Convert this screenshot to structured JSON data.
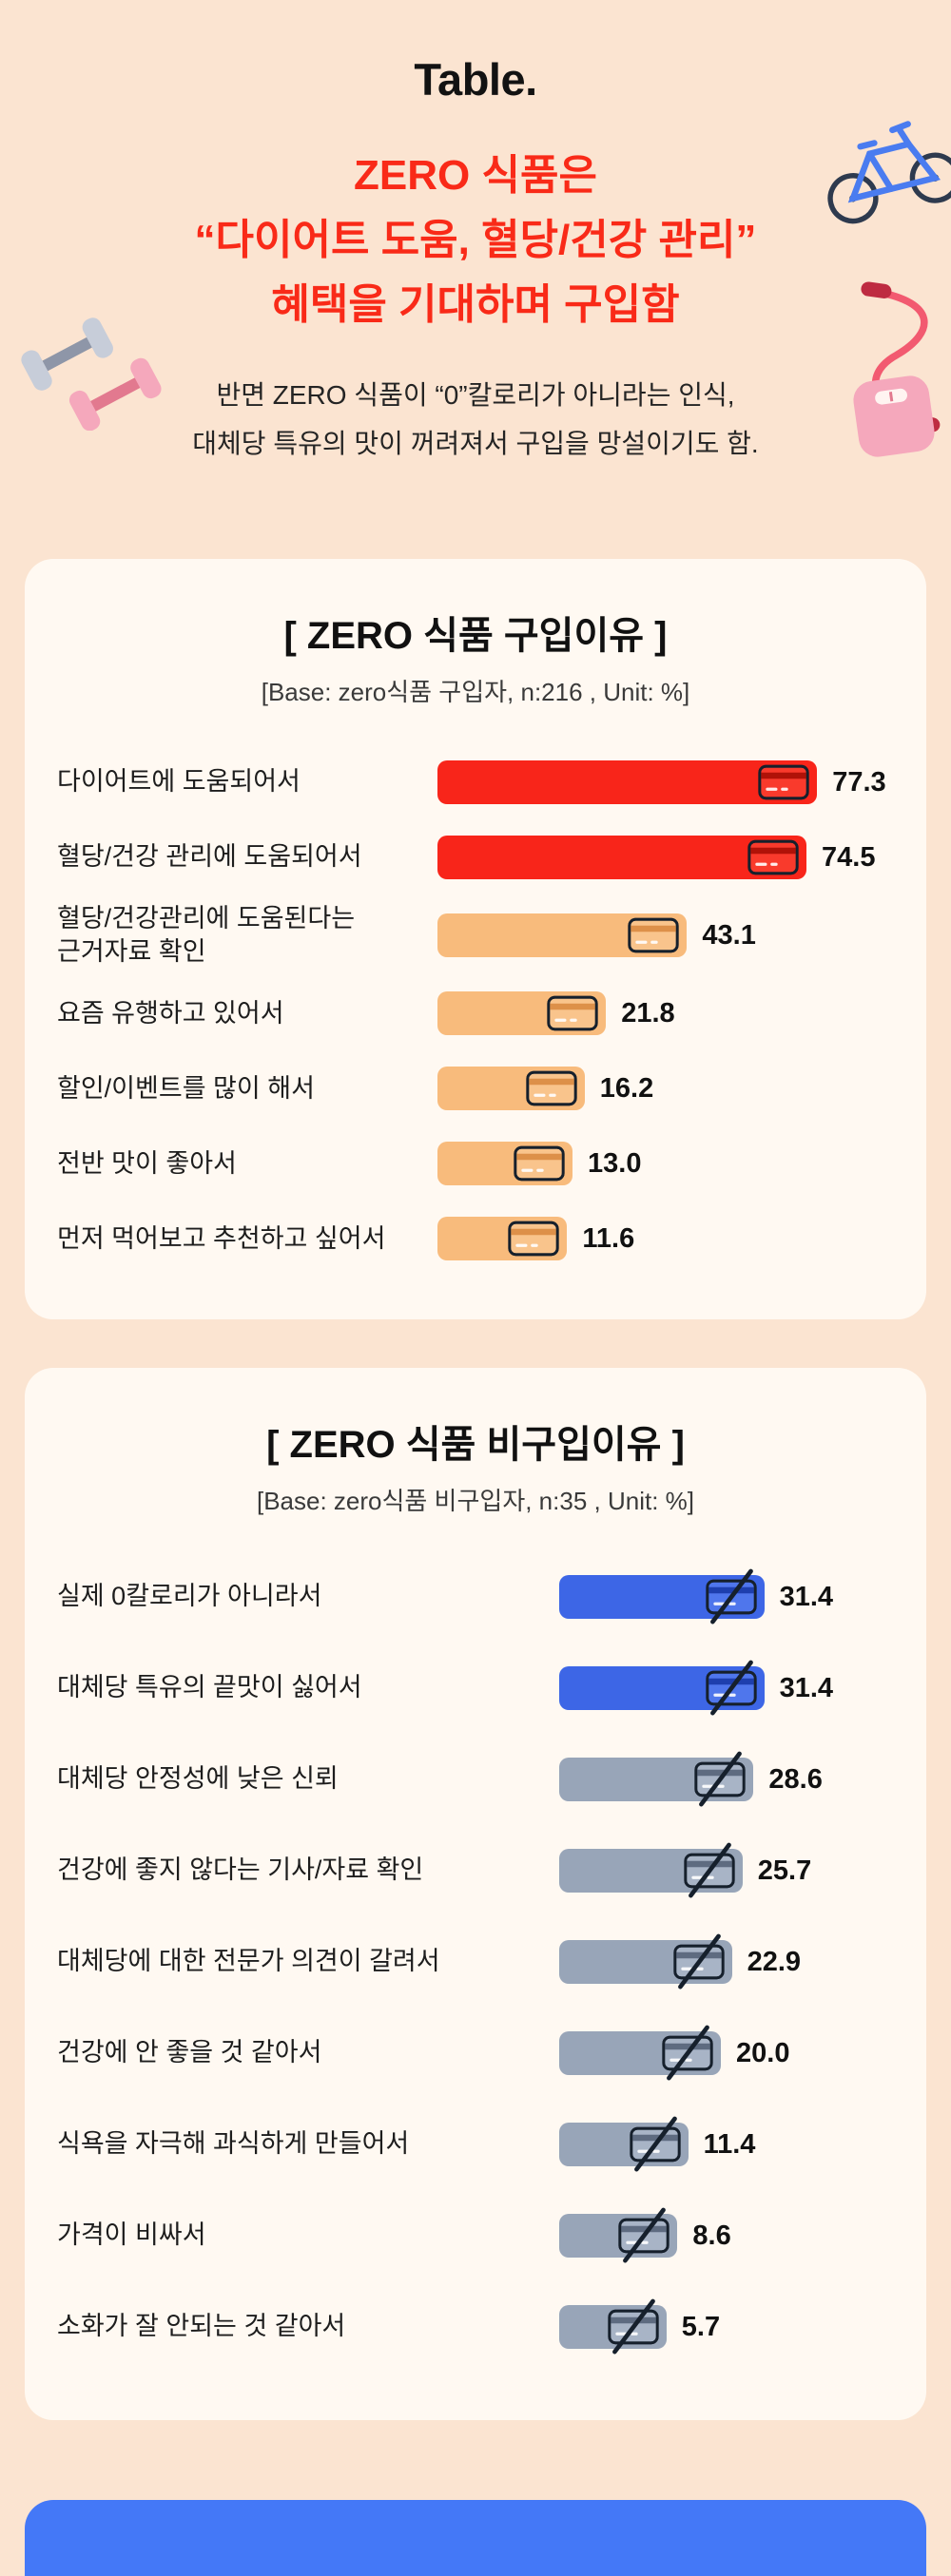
{
  "page": {
    "logo": "Table.",
    "title_lines": [
      "ZERO 식품은",
      "“다이어트 도움, 혈당/건강 관리”",
      "혜택을 기대하며 구입함"
    ],
    "subtitle_lines": [
      "반면 ZERO 식품이 “0”칼로리가 아니라는 인식,",
      "대체당 특유의 맛이 꺼려져서 구입을 망설이기도 함."
    ]
  },
  "colors": {
    "background": "#FBE4D1",
    "card_background": "#FFF9F2",
    "title_red": "#F92A18",
    "bar_red": "#F8251A",
    "bar_red_icon": "#F93A2C",
    "bar_red_dark": "#B01208",
    "bar_orange": "#F8BB7C",
    "bar_orange_icon": "#F9C48C",
    "bar_orange_dark": "#DD9049",
    "bar_blue": "#3D66E6",
    "bar_blue_icon": "#4F76EC",
    "bar_blue_dark": "#1E3FAE",
    "bar_gray": "#98A5B8",
    "bar_gray_icon": "#A8B4C6",
    "bar_gray_dark": "#5E6B80",
    "next_section_blue": "#4478F7",
    "text_dark": "#1d1d1d"
  },
  "decorations": [
    "bicycle",
    "jump-rope",
    "dumbbells",
    "weight-scale"
  ],
  "chart_data": [
    {
      "type": "bar",
      "orientation": "horizontal",
      "title": "[ ZERO 식품 구입이유 ]",
      "base_note": "[Base: zero식품 구입자, n:216 , Unit: %]",
      "n": 216,
      "unit": "%",
      "icon": "credit-card",
      "categories": [
        "다이어트에 도움되어서",
        "혈당/건강 관리에 도움되어서",
        "혈당/건강관리에 도움된다는\n근거자료 확인",
        "요즘 유행하고 있어서",
        "할인/이벤트를 많이 해서",
        "전반 맛이 좋아서",
        "먼저 먹어보고 추천하고 싶어서"
      ],
      "values": [
        77.3,
        74.5,
        43.1,
        21.8,
        16.2,
        13.0,
        11.6
      ],
      "bar_colors": [
        "red",
        "red",
        "orange",
        "orange",
        "orange",
        "orange",
        "orange"
      ],
      "xlim": [
        0,
        80
      ],
      "grid": false,
      "legend": "none"
    },
    {
      "type": "bar",
      "orientation": "horizontal",
      "title": "[ ZERO 식품 비구입이유 ]",
      "base_note": "[Base: zero식품 비구입자, n:35 , Unit: %]",
      "n": 35,
      "unit": "%",
      "icon": "credit-card-slashed",
      "categories": [
        "실제 0칼로리가 아니라서",
        "대체당 특유의 끝맛이 싫어서",
        "대체당 안정성에 낮은 신뢰",
        "건강에 좋지 않다는 기사/자료 확인",
        "대체당에 대한 전문가 의견이 갈려서",
        "건강에 안 좋을 것 같아서",
        "식욕을 자극해 과식하게 만들어서",
        "가격이 비싸서",
        "소화가 잘 안되는 것 같아서"
      ],
      "values": [
        31.4,
        31.4,
        28.6,
        25.7,
        22.9,
        20.0,
        11.4,
        8.6,
        5.7
      ],
      "bar_colors": [
        "blue",
        "blue",
        "gray",
        "gray",
        "gray",
        "gray",
        "gray",
        "gray",
        "gray"
      ],
      "xlim": [
        0,
        35
      ],
      "grid": false,
      "legend": "none"
    }
  ]
}
